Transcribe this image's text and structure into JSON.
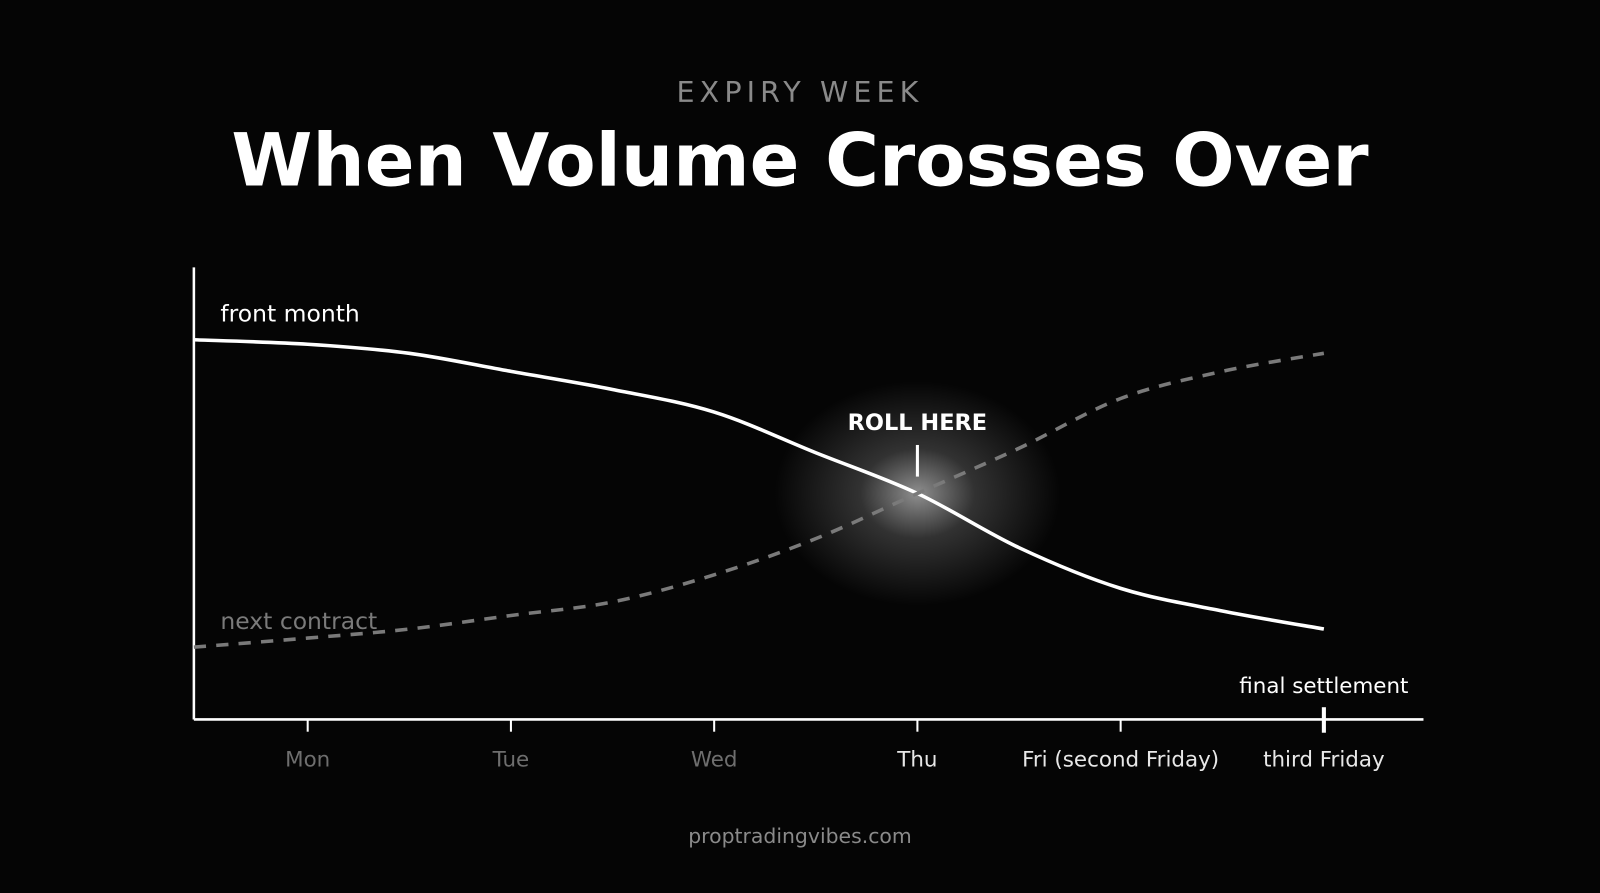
{
  "chart_data": {
    "type": "line",
    "kicker": "EXPIRY WEEK",
    "title": "When Volume Crosses Over",
    "x": [
      -0.56,
      0,
      0.5,
      1,
      1.5,
      2,
      2.5,
      3,
      3.5,
      4,
      4.5,
      5
    ],
    "xlim": [
      -0.56,
      5.49
    ],
    "xticks": [
      {
        "value": 0,
        "label": "Mon"
      },
      {
        "value": 1,
        "label": "Tue"
      },
      {
        "value": 2,
        "label": "Wed"
      },
      {
        "value": 3,
        "label": "Thu"
      },
      {
        "value": 4,
        "label": "Fri (second Friday)"
      },
      {
        "value": 5,
        "label": "third Friday"
      }
    ],
    "ylim": [
      0,
      100
    ],
    "series": [
      {
        "name": "front month",
        "color": "#ffffff",
        "dashed": false,
        "values": [
          84,
          83,
          81,
          77,
          73,
          68,
          59,
          50,
          38,
          29,
          24,
          20
        ]
      },
      {
        "name": "next contract",
        "color": "#7a7a7a",
        "dashed": true,
        "values": [
          16,
          18,
          20,
          23,
          26,
          32,
          40,
          50,
          60,
          71,
          77,
          81
        ]
      }
    ],
    "annotations": [
      {
        "text": "ROLL HERE",
        "x": 3
      },
      {
        "text": "final settlement",
        "x": 5
      }
    ],
    "footer": "proptradingvibes.com"
  }
}
